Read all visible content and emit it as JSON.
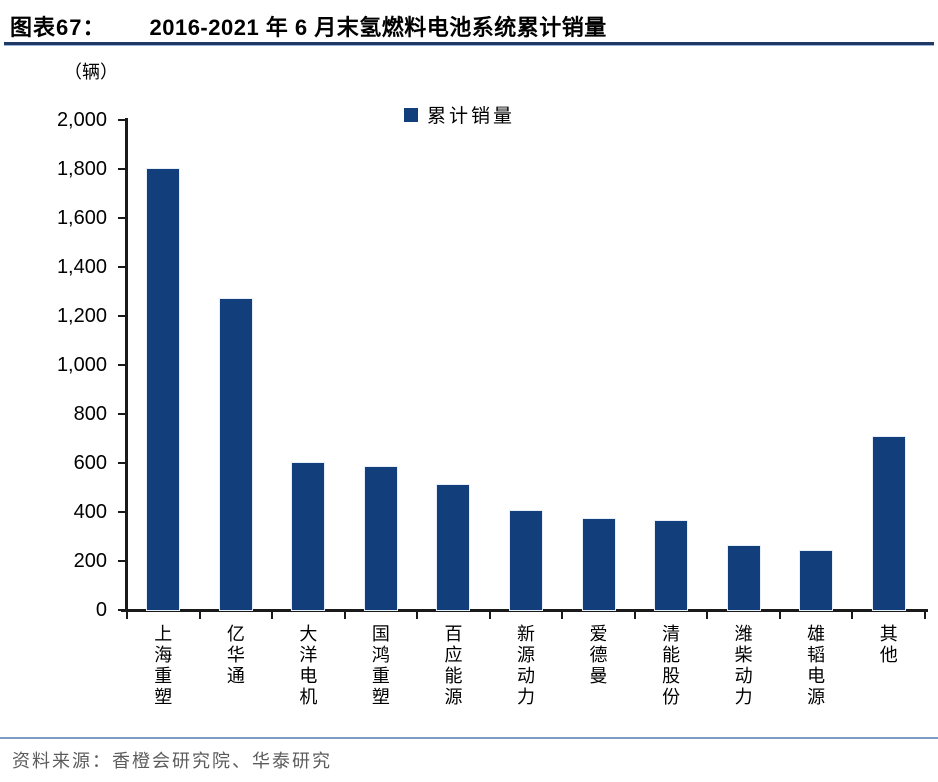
{
  "figure": {
    "label": "图表67：",
    "title": "2016-2021 年 6 月末氢燃料电池系统累计销量",
    "unit": "（辆）",
    "source": "资料来源：香橙会研究院、华泰研究"
  },
  "legend": {
    "label": "累计销量"
  },
  "chart_data": {
    "type": "bar",
    "title": "2016-2021 年 6 月末氢燃料电池系统累计销量",
    "categories": [
      "上海重塑",
      "亿华通",
      "大洋电机",
      "国鸿重塑",
      "百应能源",
      "新源动力",
      "爱德曼",
      "清能股份",
      "潍柴动力",
      "雄韬电源",
      "其他"
    ],
    "values": [
      1800,
      1270,
      600,
      585,
      510,
      405,
      370,
      365,
      260,
      240,
      705
    ],
    "series_name": "累计销量",
    "xlabel": "",
    "ylabel": "（辆）",
    "ylim": [
      0,
      2000
    ],
    "ytick_interval": 200,
    "ytick_labels": [
      "0",
      "200",
      "400",
      "600",
      "800",
      "1,000",
      "1,200",
      "1,400",
      "1,600",
      "1,800",
      "2,000"
    ],
    "grid": false,
    "legend_position": "top-center",
    "bar_color": "#123e7c"
  },
  "colors": {
    "bar": "#123e7c",
    "title_rule": "#1f3864",
    "footer_rule": "#7c9cc4",
    "source_text": "#5c5c5c",
    "axis": "#1a1a1a"
  }
}
